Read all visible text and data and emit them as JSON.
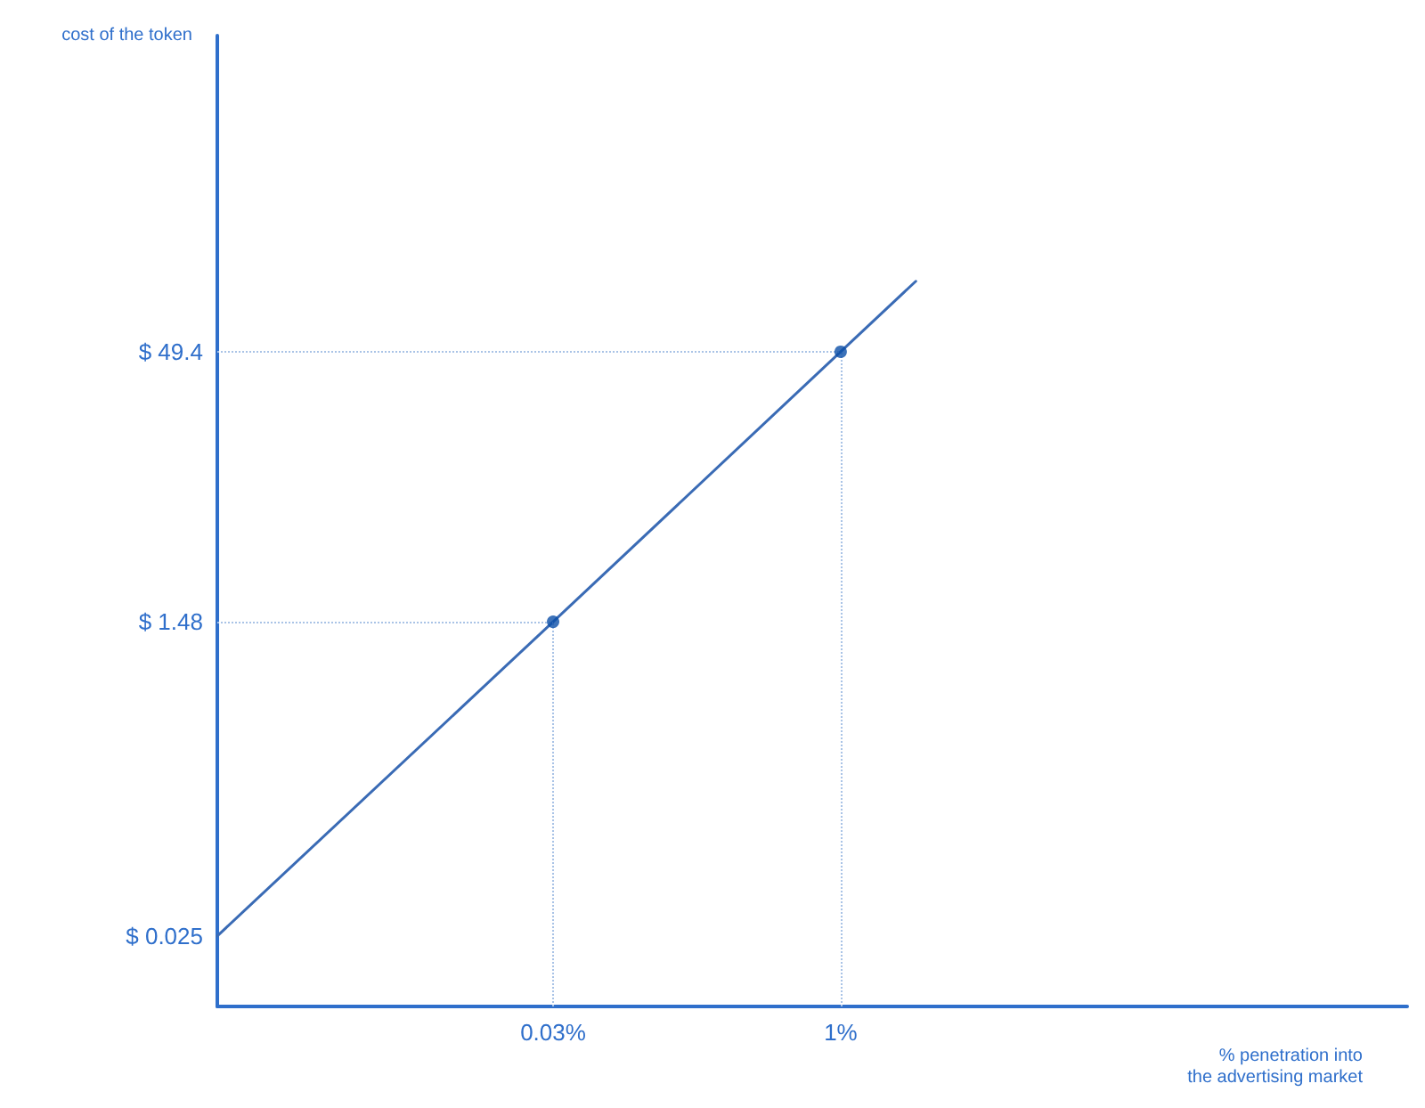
{
  "chart_data": {
    "type": "line",
    "ylabel": "cost of the token",
    "xlabel": "% penetration into\nthe advertising market",
    "log": "xy",
    "grid": false,
    "xlim": [
      0.0005,
      1000
    ],
    "xticks": [
      {
        "value": 0.03,
        "label": "0.03%"
      },
      {
        "value": 1,
        "label": "1%"
      }
    ],
    "ylim": [
      0.01,
      3000
    ],
    "yticks": [
      {
        "value": 0.025,
        "label": "$ 0.025"
      },
      {
        "value": 1.48,
        "label": "$ 1.48"
      },
      {
        "value": 49.4,
        "label": "$ 49.4"
      }
    ],
    "series": [
      {
        "color": "#3a6bb5",
        "marker": "none",
        "line_style": "solid",
        "x": [
          0.0005,
          0.03,
          1,
          2.5
        ],
        "values": [
          0.025,
          1.48,
          49.4,
          123.5
        ]
      },
      {
        "type": "scatter",
        "color": "#0b4fa8",
        "marker": "circle",
        "x": [
          0.03,
          1
        ],
        "values": [
          1.48,
          49.4
        ]
      }
    ],
    "ref_lines": [
      {
        "axis": "x",
        "value": 0.03,
        "color": "#a9c3e6",
        "line_style": "dotted"
      },
      {
        "axis": "x",
        "value": 1,
        "color": "#a9c3e6",
        "line_style": "dotted"
      },
      {
        "axis": "y",
        "value": 1.48,
        "color": "#a9c3e6",
        "line_style": "dotted"
      },
      {
        "axis": "y",
        "value": 49.4,
        "color": "#a9c3e6",
        "line_style": "dotted"
      }
    ]
  }
}
